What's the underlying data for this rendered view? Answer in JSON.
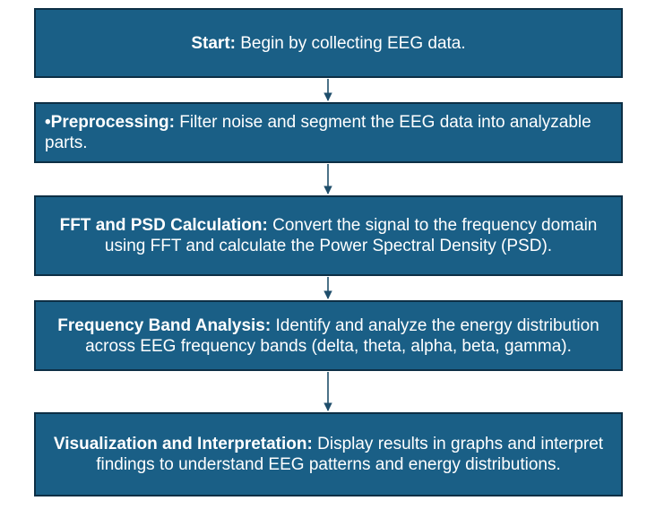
{
  "steps": [
    {
      "lead": "",
      "title": "Start",
      "sep": ":",
      "desc": " Begin by collecting EEG data."
    },
    {
      "lead": "•",
      "title": "Preprocessing",
      "sep": ":",
      "desc": " Filter noise and segment the EEG data into analyzable parts."
    },
    {
      "lead": "",
      "title": "FFT and PSD Calculation",
      "sep": ":",
      "desc": " Convert the signal to the frequency domain using FFT and calculate the Power Spectral Density (PSD)."
    },
    {
      "lead": "",
      "title": "Frequency Band Analysis",
      "sep": ":",
      "desc": " Identify and analyze the energy distribution across EEG frequency bands (delta, theta, alpha, beta, gamma)."
    },
    {
      "lead": "",
      "title": "Visualization and Interpretation",
      "sep": ":",
      "desc": " Display results in graphs and interpret findings to understand EEG patterns and energy distributions."
    }
  ],
  "colors": {
    "box_fill": "#1a5f86",
    "box_border": "#0d2f45",
    "text": "#ffffff",
    "arrow": "#1f4e6b"
  }
}
